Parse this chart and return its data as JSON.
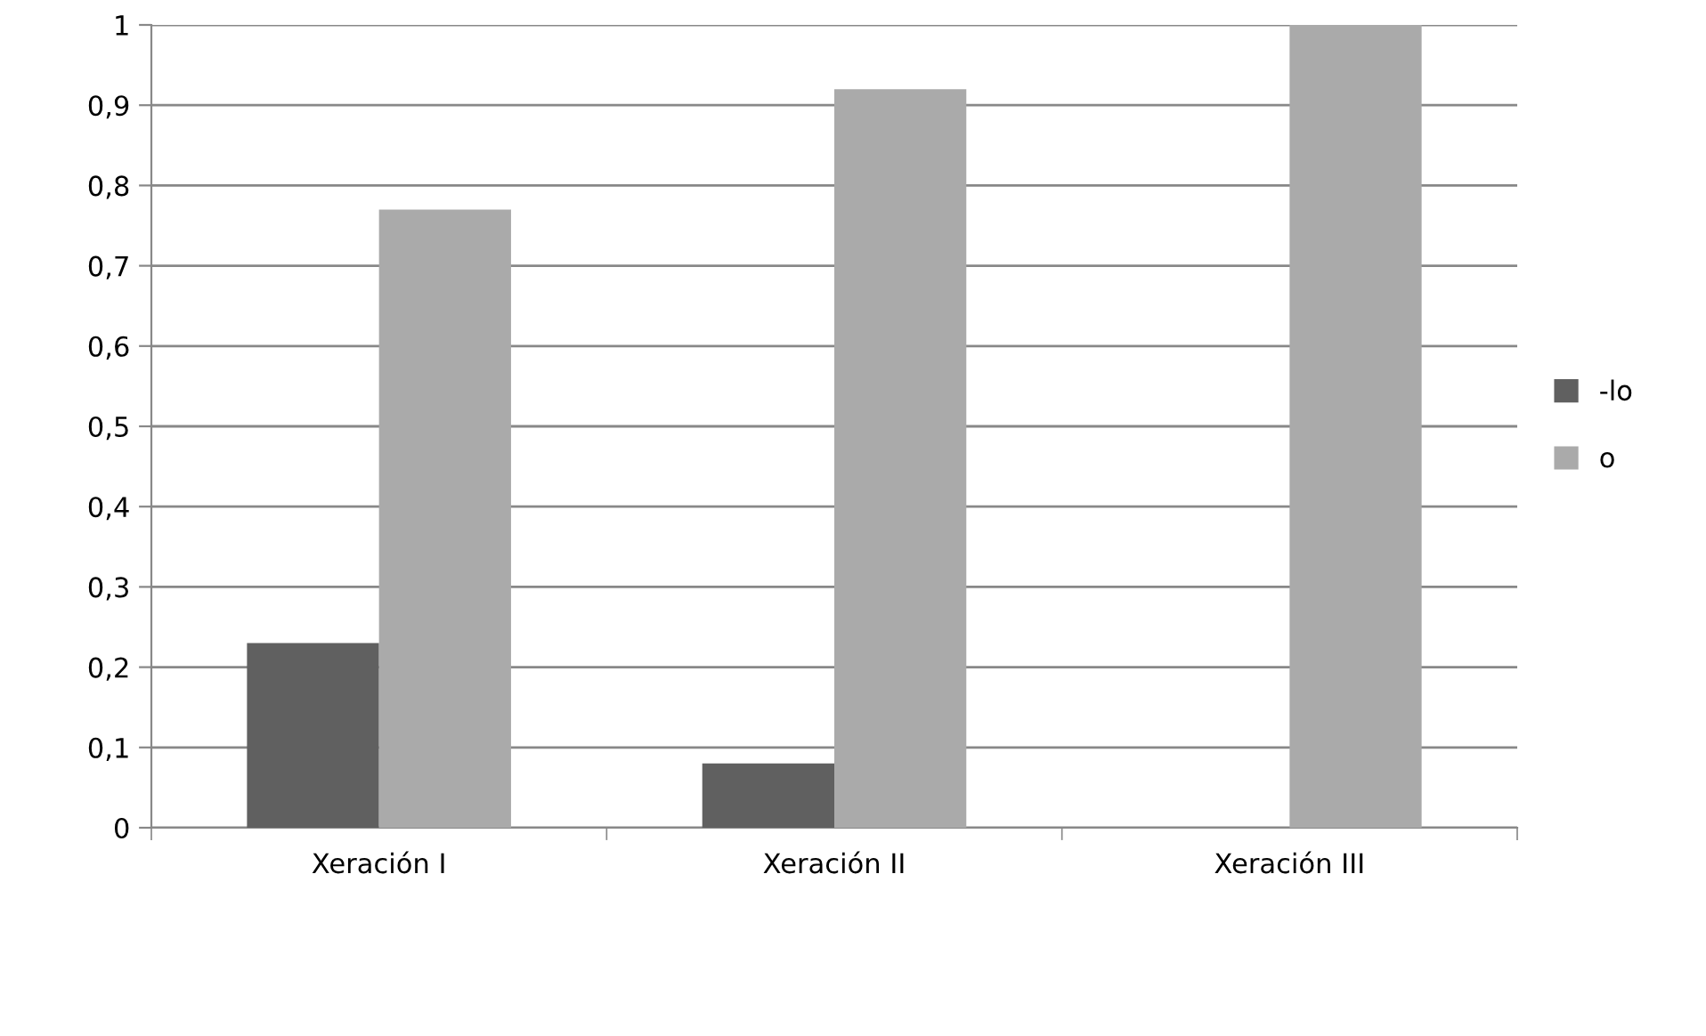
{
  "chart_data": {
    "type": "bar",
    "categories": [
      "Xeración I",
      "Xeración II",
      "Xeración III"
    ],
    "series": [
      {
        "name": "-lo",
        "color": "#606060",
        "values": [
          0.23,
          0.08,
          0
        ]
      },
      {
        "name": "o",
        "color": "#aaaaaa",
        "values": [
          0.77,
          0.92,
          1
        ]
      }
    ],
    "ylim": [
      0,
      1
    ],
    "yticks": [
      0,
      {
        "value": 0.1,
        "label": "0,1"
      },
      {
        "value": 0.2,
        "label": "0,2"
      },
      {
        "value": 0.3,
        "label": "0,3"
      },
      {
        "value": 0.4,
        "label": "0,4"
      },
      {
        "value": 0.5,
        "label": "0,5"
      },
      {
        "value": 0.6,
        "label": "0,6"
      },
      {
        "value": 0.7,
        "label": "0,7"
      },
      {
        "value": 0.8,
        "label": "0,8"
      },
      {
        "value": 0.9,
        "label": "0,9"
      },
      1
    ],
    "grid": "y",
    "legend": "right"
  }
}
